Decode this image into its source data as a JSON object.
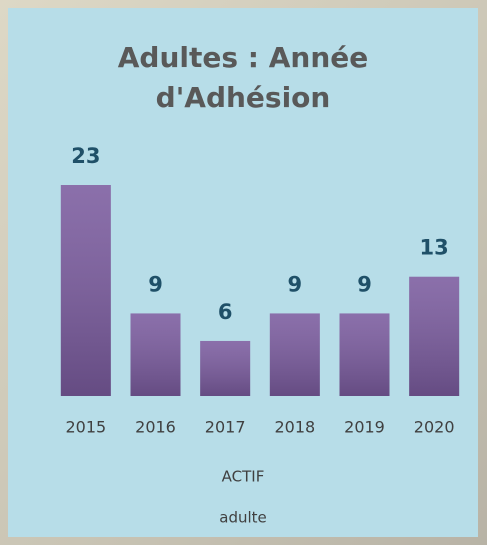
{
  "chart_data": {
    "type": "bar",
    "title": "Adultes : Année d'Adhésion",
    "categories": [
      "2015",
      "2016",
      "2017",
      "2018",
      "2019",
      "2020"
    ],
    "xlabel": "ACTIF",
    "series": [
      {
        "name": "adulte",
        "color": "#7b5c9f",
        "values": [
          23,
          9,
          6,
          9,
          9,
          13
        ]
      }
    ]
  }
}
